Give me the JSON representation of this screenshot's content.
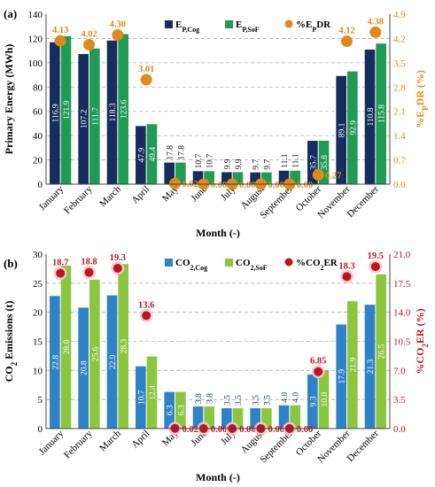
{
  "chart_data": [
    {
      "type": "bar",
      "panel_label": "(a)",
      "categories": [
        "January",
        "February",
        "March",
        "April",
        "May",
        "June",
        "July",
        "August",
        "September",
        "October",
        "November",
        "December"
      ],
      "series": [
        {
          "name": "E",
          "sub": "P,Cog",
          "color": "#172d5e",
          "values": [
            116.9,
            107.2,
            118.3,
            47.9,
            17.8,
            10.7,
            9.9,
            9.7,
            11.1,
            35.7,
            89.1,
            110.8
          ]
        },
        {
          "name": "E",
          "sub": "P,SoF",
          "color": "#1f9b54",
          "values": [
            121.9,
            111.7,
            123.6,
            49.4,
            17.8,
            10.7,
            9.9,
            9.7,
            11.1,
            35.8,
            92.9,
            115.8
          ]
        }
      ],
      "ratio_series": {
        "name": "%E",
        "sub": "P",
        "name_tail": "DR",
        "color": "#e08a1a",
        "values": [
          4.13,
          4.02,
          4.3,
          3.01,
          0.02,
          0.0,
          0.0,
          0.0,
          0.0,
          0.27,
          4.12,
          4.38
        ],
        "labels": [
          "4.13",
          "4.02",
          "4.30",
          "3.01",
          "0.02",
          "0.00",
          "0.00",
          "0.00",
          "0.00",
          "0.27",
          "4.12",
          "4.38"
        ]
      },
      "value_labels_cog": [
        "116.9",
        "107.2",
        "118.3",
        "47.9",
        "17.8",
        "10.7",
        "9.9",
        "9.7",
        "11.1",
        "35.7",
        "89.1",
        "110.8"
      ],
      "value_labels_sof": [
        "121.9",
        "111.7",
        "123.6",
        "49.4",
        "17.8",
        "10.7",
        "9.9",
        "9.7",
        "11.1",
        "35.8",
        "92.9",
        "115.8"
      ],
      "ylabel": "Primary Energy (MWh)",
      "y2label": "%E_PDR (%)",
      "y2label_parts": [
        "%E",
        "P",
        "DR (%)"
      ],
      "xlabel": "Month (-)",
      "ylim": [
        0,
        140
      ],
      "yticks": [
        "0",
        "20",
        "40",
        "60",
        "80",
        "100",
        "120",
        "140"
      ],
      "y2lim": [
        0,
        4.9
      ],
      "y2ticks": [
        "0.0",
        "0.7",
        "1.4",
        "2.1",
        "2.8",
        "3.5",
        "4.2",
        "4.9"
      ],
      "grid": "horizontal dashed",
      "legend": "top-center"
    },
    {
      "type": "bar",
      "panel_label": "(b)",
      "categories": [
        "January",
        "February",
        "March",
        "April",
        "May",
        "June",
        "July",
        "August",
        "September",
        "October",
        "November",
        "December"
      ],
      "series": [
        {
          "name": "CO",
          "sub": "2,Cog",
          "color": "#2f82c8",
          "values": [
            22.8,
            20.8,
            22.9,
            10.7,
            6.3,
            3.8,
            3.5,
            3.5,
            4.0,
            9.3,
            17.9,
            21.3
          ]
        },
        {
          "name": "CO",
          "sub": "2,SoF",
          "color": "#8cc63f",
          "values": [
            28.0,
            25.6,
            28.3,
            12.4,
            6.3,
            3.8,
            3.5,
            3.5,
            4.0,
            10.0,
            21.9,
            26.5
          ]
        }
      ],
      "ratio_series": {
        "name": "%CO",
        "sub": "2",
        "name_tail": "ER",
        "color": "#c0141d",
        "values": [
          18.7,
          18.8,
          19.3,
          13.6,
          0.02,
          0.0,
          0.0,
          0.0,
          0.0,
          6.85,
          18.3,
          19.5
        ],
        "labels": [
          "18.7",
          "18.8",
          "19.3",
          "13.6",
          "0.02",
          "0.00",
          "0.00",
          "0.00",
          "0.00",
          "6.85",
          "18.3",
          "19.5"
        ]
      },
      "value_labels_cog": [
        "22.8",
        "20.8",
        "22.9",
        "10.7",
        "6.3",
        "3.8",
        "3.5",
        "3.5",
        "4.0",
        "9.3",
        "17.9",
        "21.3"
      ],
      "value_labels_sof": [
        "28.0",
        "25.6",
        "28.3",
        "12.4",
        "6.3",
        "3.8",
        "3.5",
        "3.5",
        "4.0",
        "10.0",
        "21.9",
        "26.5"
      ],
      "ylabel": "CO2 Emissions (t)",
      "ylabel_parts": [
        "CO",
        "2",
        " Emissions (t)"
      ],
      "y2label": "%CO2ER (%)",
      "y2label_parts": [
        "%CO",
        "2",
        "ER (%)"
      ],
      "xlabel": "Month (-)",
      "ylim": [
        0,
        30
      ],
      "yticks": [
        "0",
        "5",
        "10",
        "15",
        "20",
        "25",
        "30"
      ],
      "y2lim": [
        0,
        21
      ],
      "y2ticks": [
        "0.0",
        "3.5",
        "7.0",
        "10.5",
        "14.0",
        "17.5",
        "21.0"
      ],
      "grid": "horizontal dashed",
      "legend": "top-center"
    }
  ]
}
